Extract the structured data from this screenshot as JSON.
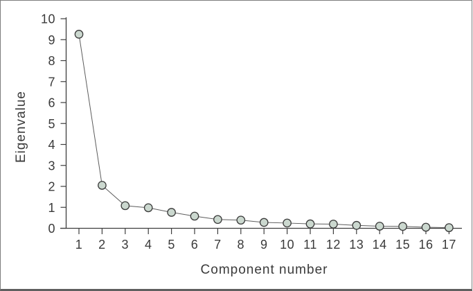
{
  "chart_data": {
    "type": "line",
    "title": "",
    "xlabel": "Component number",
    "ylabel": "Eigenvalue",
    "x": [
      1,
      2,
      3,
      4,
      5,
      6,
      7,
      8,
      9,
      10,
      11,
      12,
      13,
      14,
      15,
      16,
      17
    ],
    "series": [
      {
        "name": "Eigenvalue",
        "values": [
          9.26,
          2.05,
          1.08,
          0.98,
          0.76,
          0.58,
          0.42,
          0.39,
          0.28,
          0.25,
          0.21,
          0.2,
          0.14,
          0.1,
          0.09,
          0.05,
          0.03
        ]
      }
    ],
    "ylim": [
      0,
      10
    ],
    "yticks": [
      0,
      1,
      2,
      3,
      4,
      5,
      6,
      7,
      8,
      9,
      10
    ],
    "xticks": [
      1,
      2,
      3,
      4,
      5,
      6,
      7,
      8,
      9,
      10,
      11,
      12,
      13,
      14,
      15,
      16,
      17
    ],
    "grid": false,
    "legend_position": "none",
    "marker_shape": "circle",
    "marker_fill": "#cbd8cf",
    "marker_stroke": "#3a3a3a",
    "line_color": "#5c5c5c",
    "axis_color": "#3d3d3d",
    "text_color": "#3a3a3a",
    "frame_border_color": "#7d7d7d"
  }
}
